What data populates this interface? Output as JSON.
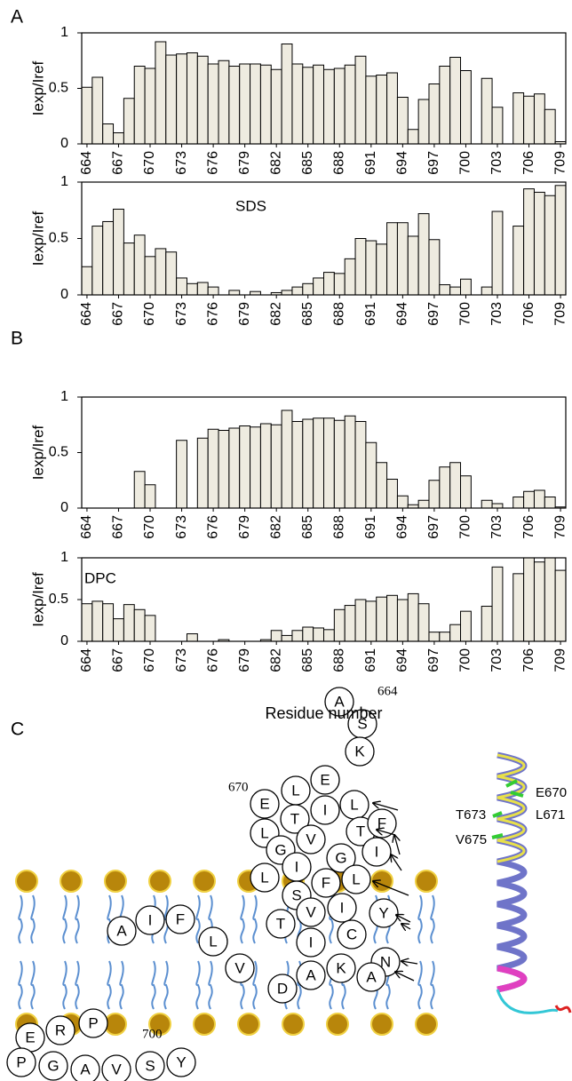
{
  "chart_data": [
    {
      "type": "bar",
      "ylabel": "Iexp/Iref",
      "color": "#eeebe0",
      "x": [
        664,
        665,
        666,
        667,
        668,
        669,
        670,
        671,
        672,
        673,
        674,
        675,
        676,
        677,
        678,
        679,
        680,
        681,
        682,
        683,
        684,
        685,
        686,
        687,
        688,
        689,
        690,
        691,
        692,
        693,
        694,
        695,
        696,
        697,
        698,
        699,
        700,
        701,
        702,
        703,
        704,
        705,
        706,
        707,
        708,
        709
      ],
      "values": [
        0.51,
        0.6,
        0.18,
        0.1,
        0.41,
        0.7,
        0.68,
        0.92,
        0.8,
        0.81,
        0.82,
        0.79,
        0.72,
        0.75,
        0.7,
        0.72,
        0.72,
        0.71,
        0.67,
        0.9,
        0.72,
        0.69,
        0.71,
        0.67,
        0.68,
        0.71,
        0.79,
        0.61,
        0.62,
        0.64,
        0.42,
        0.13,
        0.4,
        0.54,
        0.7,
        0.78,
        0.66,
        null,
        0.59,
        0.33,
        null,
        0.46,
        0.43,
        0.45,
        0.31,
        0.02
      ],
      "xlim": [
        663.5,
        709.5
      ],
      "xticks": [
        664,
        667,
        670,
        673,
        676,
        679,
        682,
        685,
        688,
        691,
        694,
        697,
        700,
        703,
        706,
        709
      ],
      "ylim": [
        0,
        1
      ],
      "yticks": [
        0,
        0.5,
        1
      ]
    },
    {
      "type": "bar",
      "ylabel": "Iexp/Iref",
      "annotation": "SDS",
      "color": "#eeebe0",
      "x": [
        664,
        665,
        666,
        667,
        668,
        669,
        670,
        671,
        672,
        673,
        674,
        675,
        676,
        677,
        678,
        679,
        680,
        681,
        682,
        683,
        684,
        685,
        686,
        687,
        688,
        689,
        690,
        691,
        692,
        693,
        694,
        695,
        696,
        697,
        698,
        699,
        700,
        701,
        702,
        703,
        704,
        705,
        706,
        707,
        708,
        709
      ],
      "values": [
        0.25,
        0.61,
        0.65,
        0.76,
        0.46,
        0.53,
        0.34,
        0.41,
        0.38,
        0.15,
        0.1,
        0.11,
        0.07,
        null,
        0.04,
        null,
        0.03,
        null,
        0.02,
        0.04,
        0.07,
        0.1,
        0.15,
        0.2,
        0.19,
        0.32,
        0.5,
        0.48,
        0.45,
        0.64,
        0.64,
        0.52,
        0.72,
        0.49,
        0.09,
        0.07,
        0.14,
        null,
        0.07,
        0.74,
        null,
        0.61,
        0.94,
        0.91,
        0.88,
        0.97
      ],
      "xlim": [
        663.5,
        709.5
      ],
      "xticks": [
        664,
        667,
        670,
        673,
        676,
        679,
        682,
        685,
        688,
        691,
        694,
        697,
        700,
        703,
        706,
        709
      ],
      "ylim": [
        0,
        1
      ],
      "yticks": [
        0,
        0.5,
        1
      ]
    },
    {
      "type": "bar",
      "ylabel": "Iexp/Iref",
      "color": "#eeebe0",
      "x": [
        664,
        665,
        666,
        667,
        668,
        669,
        670,
        671,
        672,
        673,
        674,
        675,
        676,
        677,
        678,
        679,
        680,
        681,
        682,
        683,
        684,
        685,
        686,
        687,
        688,
        689,
        690,
        691,
        692,
        693,
        694,
        695,
        696,
        697,
        698,
        699,
        700,
        701,
        702,
        703,
        704,
        705,
        706,
        707,
        708,
        709
      ],
      "values": [
        null,
        null,
        null,
        null,
        null,
        0.33,
        0.21,
        null,
        null,
        0.61,
        null,
        0.63,
        0.71,
        0.7,
        0.72,
        0.74,
        0.73,
        0.76,
        0.75,
        0.88,
        0.78,
        0.8,
        0.81,
        0.81,
        0.79,
        0.83,
        0.78,
        0.59,
        0.41,
        0.26,
        0.11,
        0.03,
        0.07,
        0.25,
        0.37,
        0.41,
        0.29,
        null,
        0.07,
        0.04,
        null,
        0.1,
        0.15,
        0.16,
        0.1,
        0.01
      ],
      "xlim": [
        663.5,
        709.5
      ],
      "xticks": [
        664,
        667,
        670,
        673,
        676,
        679,
        682,
        685,
        688,
        691,
        694,
        697,
        700,
        703,
        706,
        709
      ],
      "ylim": [
        0,
        1
      ],
      "yticks": [
        0,
        0.5,
        1
      ]
    },
    {
      "type": "bar",
      "ylabel": "Iexp/Iref",
      "annotation": "DPC",
      "xlabel": "Residue number",
      "color": "#eeebe0",
      "x": [
        664,
        665,
        666,
        667,
        668,
        669,
        670,
        671,
        672,
        673,
        674,
        675,
        676,
        677,
        678,
        679,
        680,
        681,
        682,
        683,
        684,
        685,
        686,
        687,
        688,
        689,
        690,
        691,
        692,
        693,
        694,
        695,
        696,
        697,
        698,
        699,
        700,
        701,
        702,
        703,
        704,
        705,
        706,
        707,
        708,
        709
      ],
      "values": [
        0.45,
        0.48,
        0.45,
        0.27,
        0.44,
        0.38,
        0.31,
        null,
        null,
        null,
        0.09,
        null,
        null,
        0.02,
        null,
        null,
        null,
        0.02,
        0.13,
        0.07,
        0.13,
        0.17,
        0.16,
        0.14,
        0.38,
        0.43,
        0.5,
        0.48,
        0.53,
        0.55,
        0.5,
        0.57,
        0.45,
        0.11,
        0.11,
        0.2,
        0.36,
        null,
        0.42,
        0.89,
        null,
        0.81,
        1.0,
        0.95,
        1.0,
        0.85
      ],
      "xlim": [
        663.5,
        709.5
      ],
      "xticks": [
        664,
        667,
        670,
        673,
        676,
        679,
        682,
        685,
        688,
        691,
        694,
        697,
        700,
        703,
        706,
        709
      ],
      "ylim": [
        0,
        1
      ],
      "yticks": [
        0,
        0.5,
        1
      ]
    }
  ],
  "panel_labels": [
    "A",
    "B",
    "C"
  ],
  "diagram": {
    "residues": [
      "A",
      "S",
      "K",
      "L",
      "E",
      "L",
      "E",
      "L",
      "T",
      "I",
      "T",
      "F",
      "G",
      "V",
      "G",
      "I",
      "L",
      "I",
      "F",
      "S",
      "L",
      "I",
      "T",
      "V",
      "Y",
      "C",
      "I",
      "N",
      "A",
      "K",
      "A",
      "D",
      "V",
      "L",
      "F",
      "I",
      "A",
      "E",
      "R",
      "P",
      "P",
      "G",
      "A",
      "V",
      "S",
      "Y"
    ],
    "residue_numbers": [
      "664",
      "670",
      "700"
    ],
    "helix_labels": [
      "E670",
      "L671",
      "T673",
      "V675"
    ]
  }
}
